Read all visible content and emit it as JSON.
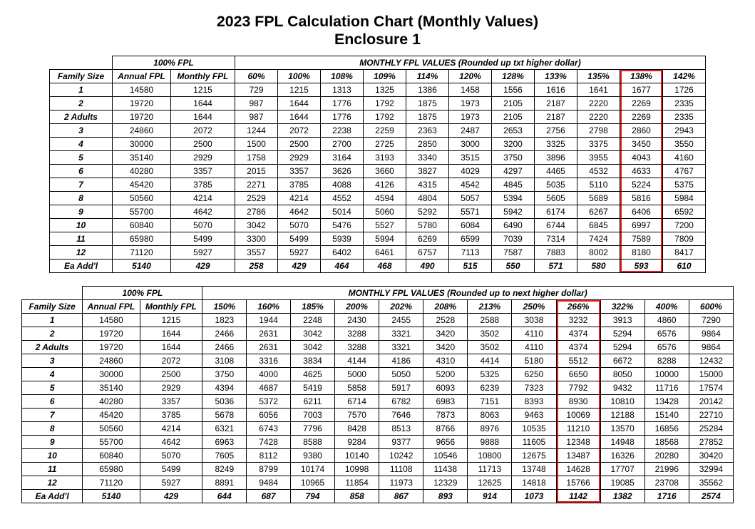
{
  "title_line1": "2023 FPL Calculation Chart (Monthly Values)",
  "title_line2": "Enclosure 1",
  "title_fontsize_pt": 16,
  "highlight_color": "#e31b1b",
  "col_widths": {
    "family": 88,
    "annual": 82,
    "monthly": 90,
    "pct": 60,
    "pct_wide": 66
  },
  "section_labels": {
    "family_size": "Family Size",
    "annual_fpl": "Annual FPL",
    "monthly_fpl": "Monthly FPL",
    "hundred_fpl": "100% FPL"
  },
  "row_labels": [
    "1",
    "2",
    "2 Adults",
    "3",
    "4",
    "5",
    "6",
    "7",
    "8",
    "9",
    "10",
    "11",
    "12",
    "Ea Add'l"
  ],
  "annual_fpl": [
    14580,
    19720,
    19720,
    24860,
    30000,
    35140,
    40280,
    45420,
    50560,
    55700,
    60840,
    65980,
    71120,
    5140
  ],
  "monthly_fpl": [
    1215,
    1644,
    1644,
    2072,
    2500,
    2929,
    3357,
    3785,
    4214,
    4642,
    5070,
    5499,
    5927,
    429
  ],
  "table1": {
    "super_header": "MONTHLY FPL VALUES (Rounded up txt higher dollar)",
    "pct_headers": [
      "60%",
      "100%",
      "108%",
      "109%",
      "114%",
      "120%",
      "128%",
      "133%",
      "135%",
      "138%",
      "142%"
    ],
    "highlight_col_index": 9,
    "rows": [
      [
        729,
        1215,
        1313,
        1325,
        1386,
        1458,
        1556,
        1616,
        1641,
        1677,
        1726
      ],
      [
        987,
        1644,
        1776,
        1792,
        1875,
        1973,
        2105,
        2187,
        2220,
        2269,
        2335
      ],
      [
        987,
        1644,
        1776,
        1792,
        1875,
        1973,
        2105,
        2187,
        2220,
        2269,
        2335
      ],
      [
        1244,
        2072,
        2238,
        2259,
        2363,
        2487,
        2653,
        2756,
        2798,
        2860,
        2943
      ],
      [
        1500,
        2500,
        2700,
        2725,
        2850,
        3000,
        3200,
        3325,
        3375,
        3450,
        3550
      ],
      [
        1758,
        2929,
        3164,
        3193,
        3340,
        3515,
        3750,
        3896,
        3955,
        4043,
        4160
      ],
      [
        2015,
        3357,
        3626,
        3660,
        3827,
        4029,
        4297,
        4465,
        4532,
        4633,
        4767
      ],
      [
        2271,
        3785,
        4088,
        4126,
        4315,
        4542,
        4845,
        5035,
        5110,
        5224,
        5375
      ],
      [
        2529,
        4214,
        4552,
        4594,
        4804,
        5057,
        5394,
        5605,
        5689,
        5816,
        5984
      ],
      [
        2786,
        4642,
        5014,
        5060,
        5292,
        5571,
        5942,
        6174,
        6267,
        6406,
        6592
      ],
      [
        3042,
        5070,
        5476,
        5527,
        5780,
        6084,
        6490,
        6744,
        6845,
        6997,
        7200
      ],
      [
        3300,
        5499,
        5939,
        5994,
        6269,
        6599,
        7039,
        7314,
        7424,
        7589,
        7809
      ],
      [
        3557,
        5927,
        6402,
        6461,
        6757,
        7113,
        7587,
        7883,
        8002,
        8180,
        8417
      ],
      [
        258,
        429,
        464,
        468,
        490,
        515,
        550,
        571,
        580,
        593,
        610
      ]
    ]
  },
  "table2": {
    "super_header": "MONTHLY FPL VALUES (Rounded up to next higher dollar)",
    "pct_headers": [
      "150%",
      "160%",
      "185%",
      "200%",
      "202%",
      "208%",
      "213%",
      "250%",
      "266%",
      "322%",
      "400%",
      "600%"
    ],
    "highlight_col_index": 8,
    "rows": [
      [
        1823,
        1944,
        2248,
        2430,
        2455,
        2528,
        2588,
        3038,
        3232,
        3913,
        4860,
        7290
      ],
      [
        2466,
        2631,
        3042,
        3288,
        3321,
        3420,
        3502,
        4110,
        4374,
        5294,
        6576,
        9864
      ],
      [
        2466,
        2631,
        3042,
        3288,
        3321,
        3420,
        3502,
        4110,
        4374,
        5294,
        6576,
        9864
      ],
      [
        3108,
        3316,
        3834,
        4144,
        4186,
        4310,
        4414,
        5180,
        5512,
        6672,
        8288,
        12432
      ],
      [
        3750,
        4000,
        4625,
        5000,
        5050,
        5200,
        5325,
        6250,
        6650,
        8050,
        10000,
        15000
      ],
      [
        4394,
        4687,
        5419,
        5858,
        5917,
        6093,
        6239,
        7323,
        7792,
        9432,
        11716,
        17574
      ],
      [
        5036,
        5372,
        6211,
        6714,
        6782,
        6983,
        7151,
        8393,
        8930,
        10810,
        13428,
        20142
      ],
      [
        5678,
        6056,
        7003,
        7570,
        7646,
        7873,
        8063,
        9463,
        10069,
        12188,
        15140,
        22710
      ],
      [
        6321,
        6743,
        7796,
        8428,
        8513,
        8766,
        8976,
        10535,
        11210,
        13570,
        16856,
        25284
      ],
      [
        6963,
        7428,
        8588,
        9284,
        9377,
        9656,
        9888,
        11605,
        12348,
        14948,
        18568,
        27852
      ],
      [
        7605,
        8112,
        9380,
        10140,
        10242,
        10546,
        10800,
        12675,
        13487,
        16326,
        20280,
        30420
      ],
      [
        8249,
        8799,
        10174,
        10998,
        11108,
        11438,
        11713,
        13748,
        14628,
        17707,
        21996,
        32994
      ],
      [
        8891,
        9484,
        10965,
        11854,
        11973,
        12329,
        12625,
        14818,
        15766,
        19085,
        23708,
        35562
      ],
      [
        644,
        687,
        794,
        858,
        867,
        893,
        914,
        1073,
        1142,
        1382,
        1716,
        2574
      ]
    ]
  }
}
